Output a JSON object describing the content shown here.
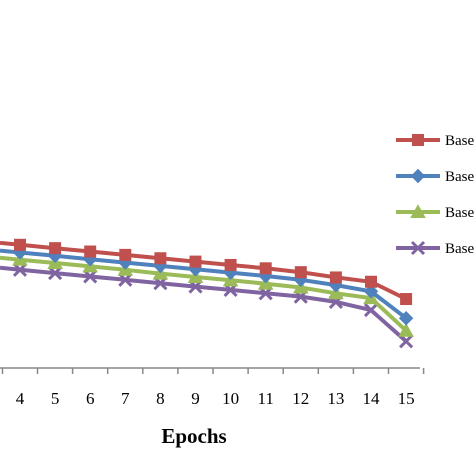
{
  "chart_data": {
    "type": "line",
    "title": "",
    "xlabel": "Epochs",
    "ylabel": "",
    "x": [
      4,
      5,
      6,
      7,
      8,
      9,
      10,
      11,
      12,
      13,
      14,
      15
    ],
    "x_tick_labels": [
      "4",
      "5",
      "6",
      "7",
      "8",
      "9",
      "10",
      "11",
      "12",
      "13",
      "14",
      "15"
    ],
    "grid": false,
    "legend_position": "right",
    "series": [
      {
        "name": "Base",
        "color": "#c0504d",
        "marker": "square",
        "values": [
          86.5,
          85.8,
          85.1,
          84.4,
          83.7,
          83.0,
          82.3,
          81.6,
          80.8,
          79.7,
          78.8,
          75.2
        ]
      },
      {
        "name": "Base",
        "color": "#4f81bd",
        "marker": "diamond",
        "values": [
          84.9,
          84.2,
          83.5,
          82.8,
          82.1,
          81.4,
          80.7,
          80.0,
          79.2,
          78.1,
          76.8,
          71.2
        ]
      },
      {
        "name": "Base",
        "color": "#9bbb59",
        "marker": "triangle",
        "values": [
          83.4,
          82.7,
          82.0,
          81.3,
          80.5,
          79.8,
          79.1,
          78.4,
          77.6,
          76.4,
          75.4,
          68.6
        ]
      },
      {
        "name": "Base",
        "color": "#8064a2",
        "marker": "x",
        "values": [
          81.3,
          80.6,
          79.9,
          79.2,
          78.5,
          77.8,
          77.1,
          76.4,
          75.7,
          74.6,
          72.9,
          66.4
        ]
      }
    ]
  }
}
